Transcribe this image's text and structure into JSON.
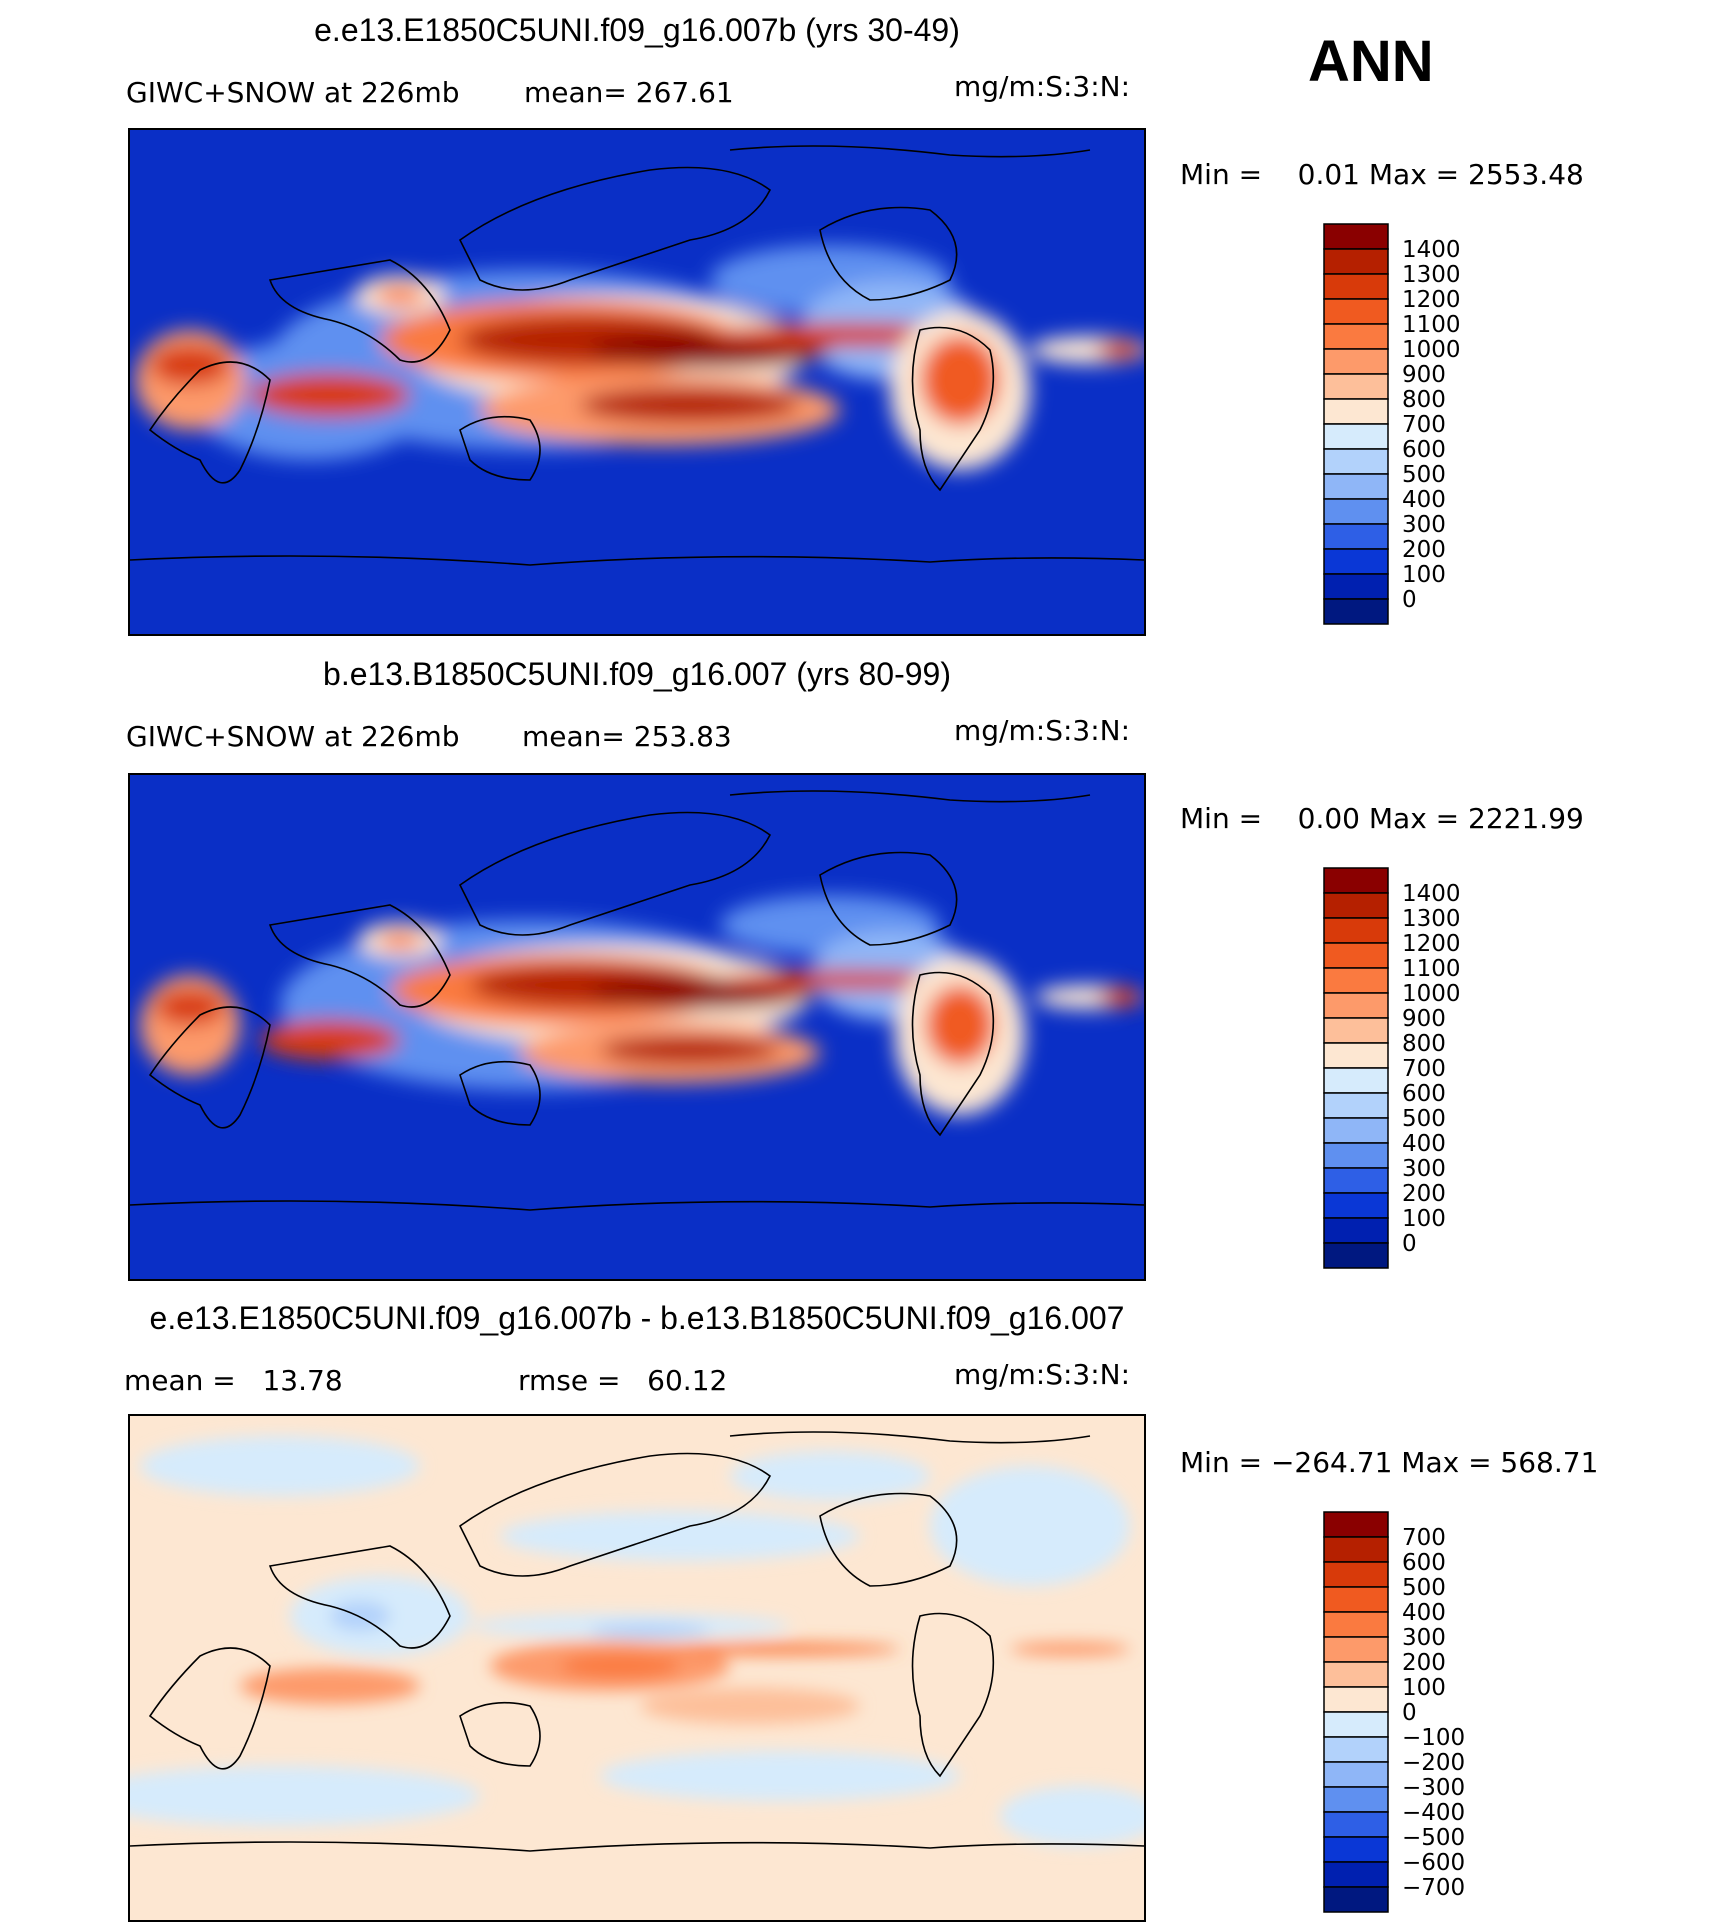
{
  "season": "ANN",
  "panels": [
    {
      "title": "e.e13.E1850C5UNI.f09_g16.007b (yrs 30-49)",
      "left_label": "GIWC+SNOW at 226mb",
      "center_label": "mean= 267.61",
      "units": "mg/m:S:3:N:",
      "minmax": "Min =    0.01 Max = 2553.48",
      "levels": [
        "1400",
        "1300",
        "1200",
        "1100",
        "1000",
        "900",
        "800",
        "700",
        "600",
        "500",
        "400",
        "300",
        "200",
        "100",
        "0"
      ],
      "colors": [
        "#8a0000",
        "#b52000",
        "#d83a0a",
        "#f05a20",
        "#fa7a40",
        "#fd9a6a",
        "#fdbf9a",
        "#fde7d2",
        "#d6ebfc",
        "#b2d2fb",
        "#8fb6f7",
        "#5f90f0",
        "#2e5fe6",
        "#0a37d6",
        "#0020b0",
        "#001880"
      ],
      "fill": "#0a2fc6"
    },
    {
      "title": "b.e13.B1850C5UNI.f09_g16.007 (yrs 80-99)",
      "left_label": "GIWC+SNOW at 226mb",
      "center_label": "mean= 253.83",
      "units": "mg/m:S:3:N:",
      "minmax": "Min =    0.00 Max = 2221.99",
      "levels": [
        "1400",
        "1300",
        "1200",
        "1100",
        "1000",
        "900",
        "800",
        "700",
        "600",
        "500",
        "400",
        "300",
        "200",
        "100",
        "0"
      ],
      "colors": [
        "#8a0000",
        "#b52000",
        "#d83a0a",
        "#f05a20",
        "#fa7a40",
        "#fd9a6a",
        "#fdbf9a",
        "#fde7d2",
        "#d6ebfc",
        "#b2d2fb",
        "#8fb6f7",
        "#5f90f0",
        "#2e5fe6",
        "#0a37d6",
        "#0020b0",
        "#001880"
      ],
      "fill": "#0a2fc6"
    },
    {
      "title": "e.e13.E1850C5UNI.f09_g16.007b - b.e13.B1850C5UNI.f09_g16.007",
      "left_label": "mean =   13.78",
      "center_label": "rmse =   60.12",
      "units": "mg/m:S:3:N:",
      "minmax": "Min = −264.71 Max = 568.71",
      "levels": [
        "700",
        "600",
        "500",
        "400",
        "300",
        "200",
        "100",
        "0",
        "−100",
        "−200",
        "−300",
        "−400",
        "−500",
        "−600",
        "−700"
      ],
      "colors": [
        "#8a0000",
        "#b52000",
        "#d83a0a",
        "#f05a20",
        "#fa7a40",
        "#fd9a6a",
        "#fdbf9a",
        "#fde7d2",
        "#d6ebfc",
        "#b2d2fb",
        "#8fb6f7",
        "#5f90f0",
        "#2e5fe6",
        "#0a37d6",
        "#0020b0",
        "#001880"
      ],
      "fill": "#fde7d2"
    }
  ],
  "chart_data": [
    {
      "type": "heatmap",
      "title": "e.e13.E1850C5UNI.f09_g16.007b (yrs 30-49)",
      "variable": "GIWC+SNOW at 226mb",
      "units": "mg/m:S:3:N:",
      "mean": 267.61,
      "min": 0.01,
      "max": 2553.48,
      "contour_levels": [
        0,
        100,
        200,
        300,
        400,
        500,
        600,
        700,
        800,
        900,
        1000,
        1100,
        1200,
        1300,
        1400
      ]
    },
    {
      "type": "heatmap",
      "title": "b.e13.B1850C5UNI.f09_g16.007 (yrs 80-99)",
      "variable": "GIWC+SNOW at 226mb",
      "units": "mg/m:S:3:N:",
      "mean": 253.83,
      "min": 0.0,
      "max": 2221.99,
      "contour_levels": [
        0,
        100,
        200,
        300,
        400,
        500,
        600,
        700,
        800,
        900,
        1000,
        1100,
        1200,
        1300,
        1400
      ]
    },
    {
      "type": "heatmap",
      "title": "e.e13.E1850C5UNI.f09_g16.007b - b.e13.B1850C5UNI.f09_g16.007",
      "units": "mg/m:S:3:N:",
      "mean": 13.78,
      "rmse": 60.12,
      "min": -264.71,
      "max": 568.71,
      "contour_levels": [
        -700,
        -600,
        -500,
        -400,
        -300,
        -200,
        -100,
        0,
        100,
        200,
        300,
        400,
        500,
        600,
        700
      ]
    }
  ]
}
